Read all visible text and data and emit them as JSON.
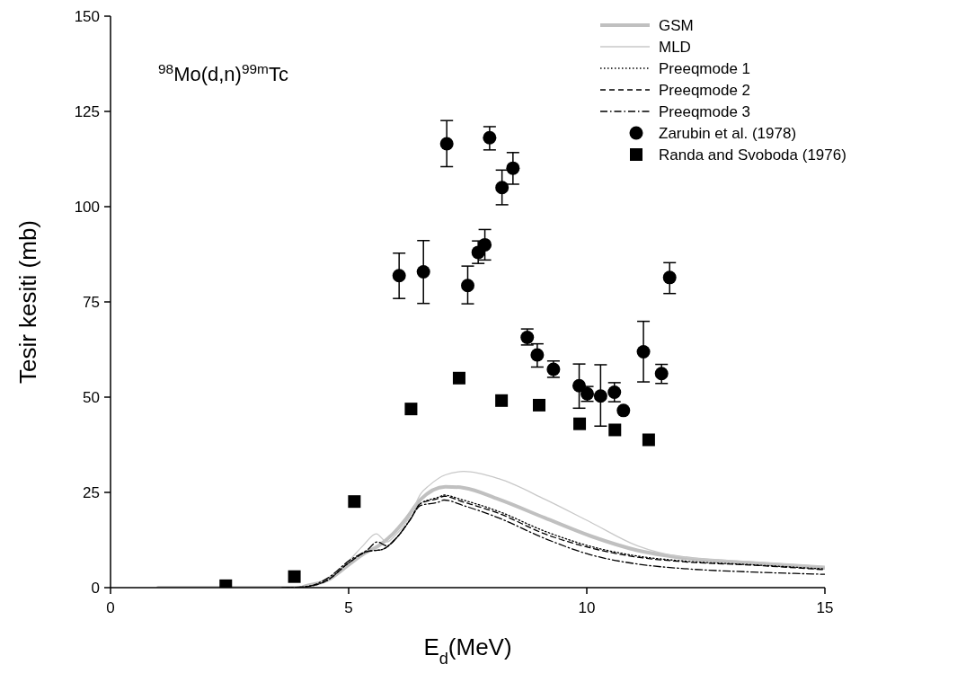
{
  "chart_data": {
    "type": "line",
    "title": "$^{98}$Mo(d,n)$^{99m}$Tc",
    "xlabel": "E$_{d}$(MeV)",
    "ylabel": "Tesir kesiti (mb)",
    "xlim": [
      0,
      15
    ],
    "xticks": [
      0,
      5,
      10,
      15
    ],
    "ylim": [
      0,
      150
    ],
    "yticks": [
      0,
      25,
      50,
      75,
      100,
      125,
      150
    ],
    "legend": "top right",
    "grid": false,
    "series": [
      {
        "name": "GSM",
        "color": "#c0c0c0",
        "line_style": "solid",
        "x": [
          1,
          4,
          4.07,
          4.56,
          5,
          5.33,
          5.63,
          5.92,
          6.2,
          6.5,
          7.03,
          7.42,
          8.15,
          9.12,
          10.09,
          11.06,
          12.03,
          13.48,
          15
        ],
        "values": [
          0,
          0,
          0.3,
          2,
          6,
          9,
          11,
          14,
          18,
          23,
          26.5,
          26.2,
          23.2,
          18.3,
          13.5,
          9.8,
          7.8,
          6.4,
          5.2
        ]
      },
      {
        "name": "MLD",
        "color": "#c8c8c8",
        "line_style": "solid",
        "x": [
          3.9,
          4.07,
          4.56,
          5,
          5.3,
          5.58,
          5.8,
          6,
          6.3,
          6.5,
          6.69,
          7.03,
          7.42,
          8.15,
          9.12,
          10.09,
          11.06,
          12.03,
          13.48,
          15
        ],
        "values": [
          0,
          0.2,
          2.5,
          7,
          11,
          14.1,
          12,
          14,
          19,
          24.4,
          26.8,
          29.6,
          30.5,
          28.6,
          23.2,
          17.1,
          11,
          8,
          6.8,
          5.6
        ]
      },
      {
        "name": "Preeqmode 1",
        "color": "#000000",
        "line_style": "dotted",
        "x": [
          3.8,
          4.07,
          4.56,
          5,
          5.4,
          5.7,
          6,
          6.3,
          6.5,
          6.9,
          7,
          7.4,
          8.15,
          9.12,
          10.09,
          11.06,
          12.03,
          13.48,
          15
        ],
        "values": [
          0,
          0.2,
          2,
          6.5,
          9.5,
          10,
          13,
          18,
          22,
          23.8,
          24.3,
          23,
          20,
          14.8,
          10.8,
          8.3,
          7,
          6,
          4.9
        ]
      },
      {
        "name": "Preeqmode 2",
        "color": "#000000",
        "line_style": "dashed",
        "x": [
          3.7,
          4.07,
          4.56,
          5,
          5.4,
          5.7,
          6,
          6.3,
          6.5,
          6.9,
          7,
          7.4,
          8.15,
          9.12,
          10.09,
          11.06,
          12.03,
          13.48,
          15
        ],
        "values": [
          0,
          0.2,
          2,
          6.5,
          9.5,
          10,
          13,
          18,
          22,
          23.5,
          24,
          22.5,
          19.5,
          14.1,
          10.4,
          8,
          6.8,
          5.9,
          4.7
        ]
      },
      {
        "name": "Preeqmode 3",
        "color": "#000000",
        "line_style": "dashdot",
        "x": [
          3.6,
          4.07,
          4.56,
          5,
          5.4,
          5.6,
          5.8,
          6,
          6.3,
          6.5,
          6.9,
          7,
          7.42,
          8.15,
          9.12,
          10.09,
          11.06,
          12.03,
          13.48,
          15
        ],
        "values": [
          0,
          0.2,
          2.5,
          7,
          10,
          12,
          11,
          13,
          18,
          21.5,
          22.5,
          23,
          21.5,
          18.3,
          12.9,
          8.6,
          6.2,
          5,
          4.1,
          3.5
        ]
      },
      {
        "name": "Zarubin et al. (1978)",
        "type": "scatter",
        "marker": "circle",
        "color": "#000000",
        "x": [
          6.06,
          6.57,
          7.06,
          7.5,
          7.72,
          7.86,
          7.96,
          8.22,
          8.45,
          8.75,
          8.96,
          9.3,
          9.84,
          10.01,
          10.29,
          10.58,
          10.77,
          11.19,
          11.57,
          11.74
        ],
        "values": [
          81.9,
          82.9,
          116.5,
          79.3,
          88,
          90,
          118.1,
          105,
          110.1,
          65.7,
          61.1,
          57.3,
          53,
          50.9,
          50.3,
          51.3,
          46.5,
          61.9,
          56.2,
          81.4
        ],
        "errors": [
          [
            75.9,
            87.8
          ],
          [
            74.6,
            91.1
          ],
          [
            110.5,
            122.6
          ],
          [
            74.5,
            84.4
          ],
          [
            85.1,
            91
          ],
          [
            86,
            94
          ],
          [
            114.9,
            121
          ],
          [
            100.5,
            109.6
          ],
          [
            105.9,
            114.2
          ],
          [
            63.7,
            67.9
          ],
          [
            57.9,
            64
          ],
          [
            55.2,
            59.5
          ],
          [
            47.1,
            58.7
          ],
          [
            48.9,
            52.8
          ],
          [
            42.4,
            58.5
          ],
          [
            48.8,
            53.8
          ],
          null,
          [
            54,
            69.9
          ],
          [
            53.6,
            58.6
          ],
          [
            77.2,
            85.3
          ]
        ]
      },
      {
        "name": "Randa and Svoboda (1976)",
        "type": "scatter",
        "marker": "square",
        "color": "#000000",
        "x": [
          2.42,
          3.86,
          5.12,
          6.31,
          7.32,
          8.21,
          9,
          9.85,
          10.59,
          11.3
        ],
        "values": [
          0.5,
          2.9,
          22.6,
          46.9,
          55,
          49.1,
          47.9,
          43,
          41.4,
          38.8
        ]
      }
    ]
  }
}
